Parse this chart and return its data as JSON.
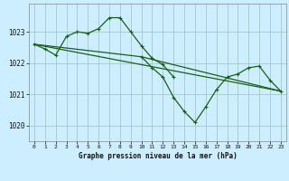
{
  "title": "Graphe pression niveau de la mer (hPa)",
  "background_color": "#cceeff",
  "grid_color": "#aacccc",
  "line_color": "#1a5e1a",
  "xlim": [
    -0.5,
    23.5
  ],
  "ylim": [
    1019.5,
    1023.9
  ],
  "yticks": [
    1020,
    1021,
    1022,
    1023
  ],
  "xticks": [
    0,
    1,
    2,
    3,
    4,
    5,
    6,
    7,
    8,
    9,
    10,
    11,
    12,
    13,
    14,
    15,
    16,
    17,
    18,
    19,
    20,
    21,
    22,
    23
  ],
  "series": [
    {
      "x": [
        0,
        1,
        2,
        3,
        4,
        5,
        6,
        7,
        8,
        9,
        10,
        11,
        12,
        13
      ],
      "y": [
        1022.6,
        1022.45,
        1022.25,
        1022.85,
        1023.0,
        1022.95,
        1023.1,
        1023.45,
        1023.45,
        1023.0,
        1022.55,
        1022.15,
        1021.95,
        1021.55
      ]
    },
    {
      "x": [
        0,
        23
      ],
      "y": [
        1022.6,
        1021.1
      ]
    },
    {
      "x": [
        0,
        10,
        23
      ],
      "y": [
        1022.6,
        1022.2,
        1021.1
      ]
    },
    {
      "x": [
        10,
        11,
        12,
        13,
        14,
        15,
        16,
        17,
        18,
        19,
        20,
        21,
        22,
        23
      ],
      "y": [
        1022.2,
        1021.85,
        1021.55,
        1020.9,
        1020.45,
        1020.1,
        1020.6,
        1021.15,
        1021.55,
        1021.65,
        1021.85,
        1021.9,
        1021.45,
        1021.1
      ]
    }
  ]
}
